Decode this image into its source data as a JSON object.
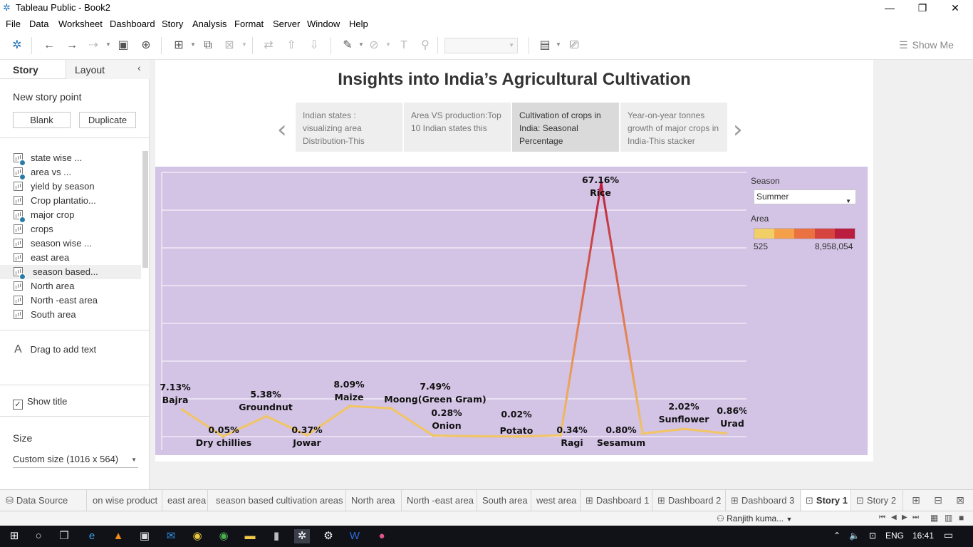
{
  "window": {
    "title": "Tableau Public - Book2",
    "minimize": "—",
    "restore": "❐",
    "close": "✕"
  },
  "menu": [
    "File",
    "Data",
    "Worksheet",
    "Dashboard",
    "Story",
    "Analysis",
    "Format",
    "Server",
    "Window",
    "Help"
  ],
  "toolbar": {
    "show_me": "Show Me"
  },
  "left_panel": {
    "tab_story": "Story",
    "tab_layout": "Layout",
    "new_story_point": "New story point",
    "btn_blank": "Blank",
    "btn_duplicate": "Duplicate",
    "sheets": [
      {
        "label": "state wise ...",
        "used": true
      },
      {
        "label": "area vs ...",
        "used": true
      },
      {
        "label": "yield by season",
        "used": false
      },
      {
        "label": "Crop plantatio...",
        "used": false
      },
      {
        "label": "major crop",
        "used": true
      },
      {
        "label": "crops",
        "used": false
      },
      {
        "label": "season wise ...",
        "used": false
      },
      {
        "label": "east area",
        "used": false
      },
      {
        "label": "season based...",
        "used": true
      },
      {
        "label": "North area",
        "used": false
      },
      {
        "label": "North -east area",
        "used": false
      },
      {
        "label": "South area",
        "used": false
      }
    ],
    "drag_text": "Drag to add text",
    "show_title": "Show title",
    "size_heading": "Size",
    "size_value": "Custom size (1016 x 564)"
  },
  "story": {
    "title": "Insights into India’s Agricultural Cultivation",
    "points": [
      {
        "text": "Indian states : visualizing area Distribution-This",
        "active": false
      },
      {
        "text": "Area VS production:Top 10 Indian states this",
        "active": false
      },
      {
        "text": "Cultivation of crops in India: Seasonal Percentage",
        "active": true
      },
      {
        "text": "Year-on-year tonnes growth of major crops in India-This stacker",
        "active": false
      }
    ]
  },
  "filters": {
    "season_label": "Season",
    "season_value": "Summer",
    "area_label": "Area",
    "area_min": "525",
    "area_max": "8,958,054",
    "ramp_colors": [
      "#f2cf66",
      "#f4a04a",
      "#ea7140",
      "#d6443f",
      "#bb1d3e"
    ]
  },
  "chart_data": {
    "type": "line",
    "categories": [
      "Bajra",
      "Dry chillies",
      "Groundnut",
      "Jowar",
      "Maize",
      "Moong(Green Gram)",
      "Onion",
      "Potato",
      "Ragi",
      "Rice",
      "Sesamum",
      "Sunflower",
      "Urad"
    ],
    "x": [
      "Bajra",
      "Dry chillies",
      "Groundnut",
      "Jowar",
      "Maize",
      "Moong(Green Gram)",
      "Onion",
      "",
      "Potato",
      "Ragi",
      "Rice",
      "Sesamum",
      "Sunflower",
      "Urad"
    ],
    "values": [
      7.13,
      0.05,
      5.38,
      0.37,
      8.09,
      7.49,
      0.28,
      0.1,
      0.02,
      0.34,
      67.16,
      0.8,
      2.02,
      0.86
    ],
    "labels": [
      "7.13%",
      "0.05%",
      "5.38%",
      "0.37%",
      "8.09%",
      "7.49%",
      "0.28%",
      "",
      "0.02%",
      "0.34%",
      "67.16%",
      "0.80%",
      "2.02%",
      "0.86%"
    ],
    "ylim": [
      0,
      70
    ],
    "grid": true,
    "legend": "right",
    "color_by": "Area"
  },
  "sheet_tabs": {
    "data_source": "Data Source",
    "tabs": [
      "on wise product",
      "east area",
      "season based cultivation areas",
      "North area",
      "North -east area",
      "South area",
      "west area"
    ],
    "dashboards": [
      "Dashboard 1",
      "Dashboard 2",
      "Dashboard 3"
    ],
    "stories": [
      "Story 1",
      "Story 2"
    ]
  },
  "status": {
    "user": "Ranjith kuma..."
  },
  "taskbar": {
    "lang": "ENG",
    "time": "16:41"
  }
}
